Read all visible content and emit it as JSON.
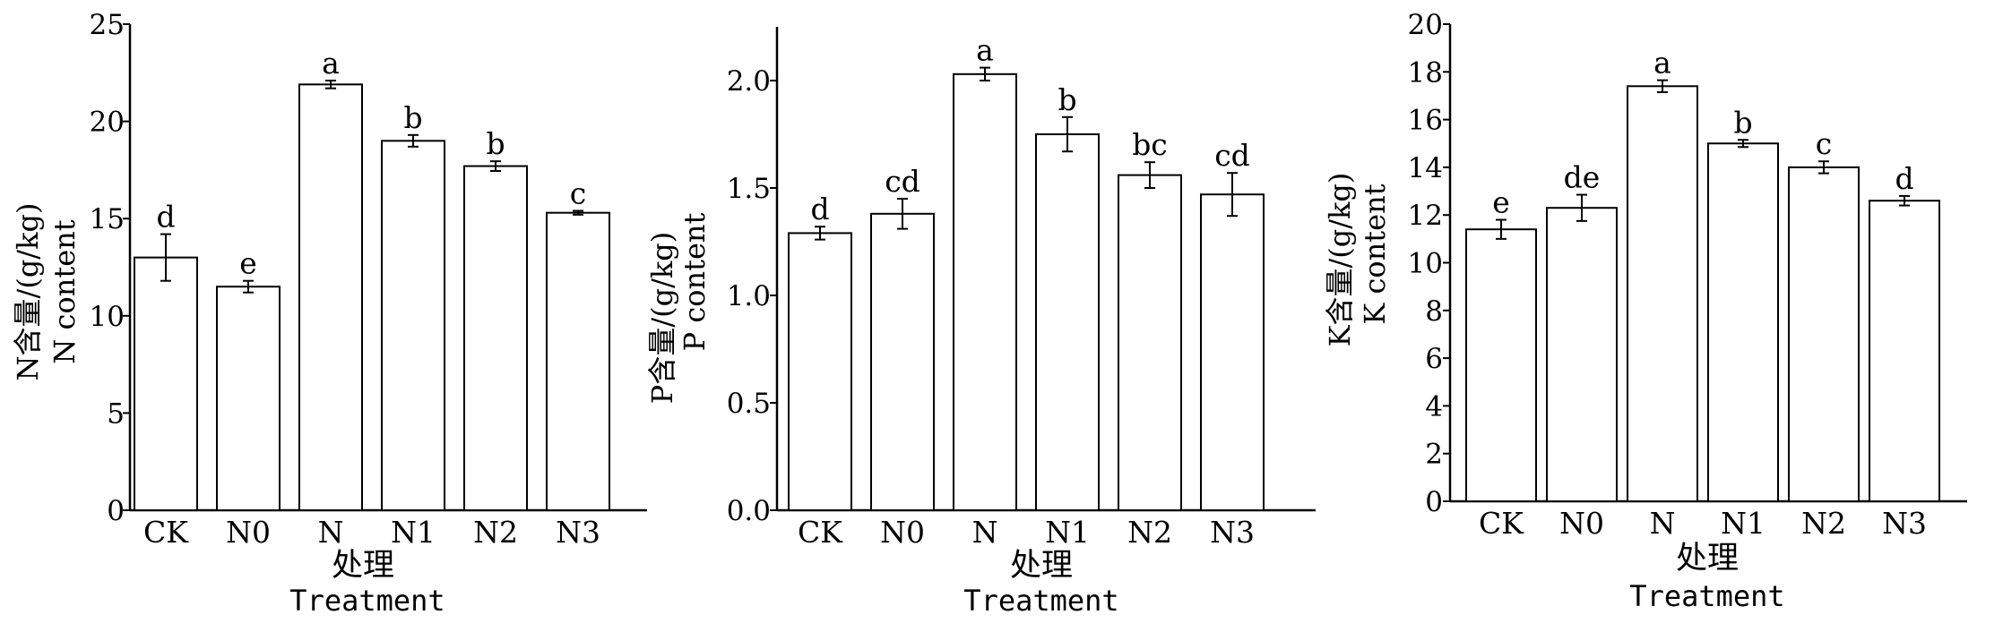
{
  "chart_data": [
    {
      "type": "bar",
      "categories": [
        "CK",
        "N0",
        "N",
        "N1",
        "N2",
        "N3"
      ],
      "values": [
        13.0,
        11.5,
        21.9,
        19.0,
        17.7,
        15.3
      ],
      "errors": [
        1.2,
        0.3,
        0.2,
        0.3,
        0.25,
        0.1
      ],
      "sig_letters": [
        "d",
        "e",
        "a",
        "b",
        "b",
        "c"
      ],
      "ylabel_cn": "N含量/(g/kg)",
      "ylabel_en": "N content",
      "xlabel_cn": "处理",
      "xlabel_en": "Treatment",
      "ylim": [
        0,
        25
      ],
      "yticks": [
        0,
        5,
        10,
        15,
        20,
        25
      ],
      "ytick_labels": [
        "0",
        "5",
        "10",
        "15",
        "20",
        "25"
      ],
      "grid": false,
      "bar_fill": "#ffffff",
      "bar_stroke": "#000000"
    },
    {
      "type": "bar",
      "categories": [
        "CK",
        "N0",
        "N",
        "N1",
        "N2",
        "N3"
      ],
      "values": [
        1.29,
        1.38,
        2.03,
        1.75,
        1.56,
        1.47
      ],
      "errors": [
        0.03,
        0.07,
        0.03,
        0.08,
        0.06,
        0.1
      ],
      "sig_letters": [
        "d",
        "cd",
        "a",
        "b",
        "bc",
        "cd"
      ],
      "ylabel_cn": "P含量/(g/kg)",
      "ylabel_en": "P content",
      "xlabel_cn": "处理",
      "xlabel_en": "Treatment",
      "ylim": [
        0,
        2.25
      ],
      "yticks": [
        0,
        0.5,
        1.0,
        1.5,
        2.0
      ],
      "ytick_labels": [
        "0.0",
        "0.5",
        "1.0",
        "1.5",
        "2.0"
      ],
      "grid": false,
      "bar_fill": "#ffffff",
      "bar_stroke": "#000000"
    },
    {
      "type": "bar",
      "categories": [
        "CK",
        "N0",
        "N",
        "N1",
        "N2",
        "N3"
      ],
      "values": [
        11.4,
        12.3,
        17.4,
        15.0,
        14.0,
        12.6
      ],
      "errors": [
        0.4,
        0.55,
        0.25,
        0.15,
        0.25,
        0.2
      ],
      "sig_letters": [
        "e",
        "de",
        "a",
        "b",
        "c",
        "d"
      ],
      "ylabel_cn": "K含量/(g/kg)",
      "ylabel_en": "K content",
      "xlabel_cn": "处理",
      "xlabel_en": "Treatment",
      "ylim": [
        0,
        20
      ],
      "yticks": [
        0,
        2,
        4,
        6,
        8,
        10,
        12,
        14,
        16,
        18,
        20
      ],
      "ytick_labels": [
        "0",
        "2",
        "4",
        "6",
        "8",
        "10",
        "12",
        "14",
        "16",
        "18",
        "20"
      ],
      "grid": false,
      "bar_fill": "#ffffff",
      "bar_stroke": "#000000"
    }
  ]
}
